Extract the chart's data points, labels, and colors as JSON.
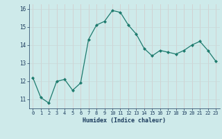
{
  "x": [
    0,
    1,
    2,
    3,
    4,
    5,
    6,
    7,
    8,
    9,
    10,
    11,
    12,
    13,
    14,
    15,
    16,
    17,
    18,
    19,
    20,
    21,
    22,
    23
  ],
  "y": [
    12.2,
    11.1,
    10.8,
    12.0,
    12.1,
    11.5,
    11.9,
    14.3,
    15.1,
    15.3,
    15.9,
    15.8,
    15.1,
    14.6,
    13.8,
    13.4,
    13.7,
    13.6,
    13.5,
    13.7,
    14.0,
    14.2,
    13.7,
    13.1
  ],
  "xlabel": "Humidex (Indice chaleur)",
  "xlim": [
    -0.5,
    23.5
  ],
  "ylim": [
    10.5,
    16.25
  ],
  "yticks": [
    11,
    12,
    13,
    14,
    15,
    16
  ],
  "xticks": [
    0,
    1,
    2,
    3,
    4,
    5,
    6,
    7,
    8,
    9,
    10,
    11,
    12,
    13,
    14,
    15,
    16,
    17,
    18,
    19,
    20,
    21,
    22,
    23
  ],
  "line_color": "#1e7b6e",
  "marker": "D",
  "marker_size": 2.0,
  "bg_color": "#ceeaea",
  "grid_color": "#b0d8d8",
  "label_color": "#1a3a5c",
  "tick_fontsize": 5.0,
  "xlabel_fontsize": 6.0
}
